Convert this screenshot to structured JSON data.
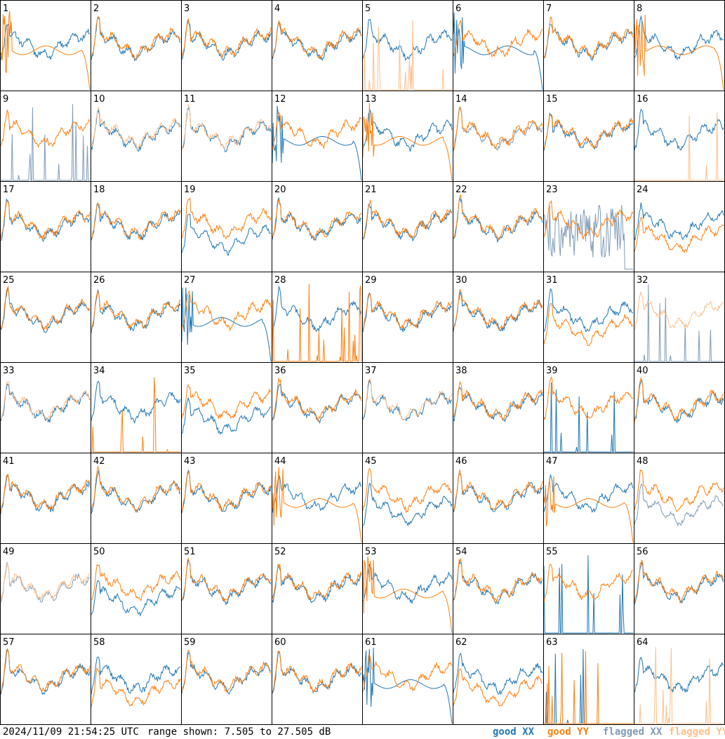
{
  "footer": {
    "timestamp": "2024/11/09 21:54:25 UTC",
    "range_text": "range shown: 7.505 to 27.505 dB"
  },
  "legend": [
    {
      "label": "good XX",
      "color": "#1f77b4"
    },
    {
      "label": "good YY",
      "color": "#ff7f0e"
    },
    {
      "label": "flagged XX",
      "color": "#7f9bb6"
    },
    {
      "label": "flagged YY",
      "color": "#ffbf8a"
    }
  ],
  "chart_data": {
    "type": "line",
    "layout": "small-multiples 8x8",
    "ylim": [
      7.505,
      27.505
    ],
    "yunit": "dB",
    "panels": [
      {
        "id": "1",
        "xx": "good",
        "yy": "good",
        "pattern": "yy-rolloff"
      },
      {
        "id": "2",
        "xx": "good",
        "yy": "good",
        "pattern": "normal"
      },
      {
        "id": "3",
        "xx": "good",
        "yy": "good",
        "pattern": "normal"
      },
      {
        "id": "4",
        "xx": "good",
        "yy": "good",
        "pattern": "normal"
      },
      {
        "id": "5",
        "xx": "good",
        "yy": "flagged",
        "pattern": "yy-dead"
      },
      {
        "id": "6",
        "xx": "good",
        "yy": "good",
        "pattern": "xx-rolloff"
      },
      {
        "id": "7",
        "xx": "good",
        "yy": "good",
        "pattern": "normal"
      },
      {
        "id": "8",
        "xx": "good",
        "yy": "good",
        "pattern": "yy-rolloff"
      },
      {
        "id": "9",
        "xx": "flagged",
        "yy": "good",
        "pattern": "xx-dead"
      },
      {
        "id": "10",
        "xx": "good",
        "yy": "flagged",
        "pattern": "normal"
      },
      {
        "id": "11",
        "xx": "good",
        "yy": "flagged",
        "pattern": "normal"
      },
      {
        "id": "12",
        "xx": "good",
        "yy": "good",
        "pattern": "xx-rolloff"
      },
      {
        "id": "13",
        "xx": "good",
        "yy": "good",
        "pattern": "yy-rolloff"
      },
      {
        "id": "14",
        "xx": "flagged",
        "yy": "good",
        "pattern": "normal"
      },
      {
        "id": "15",
        "xx": "good",
        "yy": "good",
        "pattern": "normal"
      },
      {
        "id": "16",
        "xx": "good",
        "yy": "flagged",
        "pattern": "yy-dead"
      },
      {
        "id": "17",
        "xx": "good",
        "yy": "good",
        "pattern": "normal"
      },
      {
        "id": "18",
        "xx": "good",
        "yy": "good",
        "pattern": "normal"
      },
      {
        "id": "19",
        "xx": "good",
        "yy": "good",
        "pattern": "xx-low"
      },
      {
        "id": "20",
        "xx": "good",
        "yy": "good",
        "pattern": "normal"
      },
      {
        "id": "21",
        "xx": "good",
        "yy": "good",
        "pattern": "normal"
      },
      {
        "id": "22",
        "xx": "good",
        "yy": "good",
        "pattern": "normal"
      },
      {
        "id": "23",
        "xx": "flagged",
        "yy": "good",
        "pattern": "xx-noisy"
      },
      {
        "id": "24",
        "xx": "good",
        "yy": "good",
        "pattern": "yy-low"
      },
      {
        "id": "25",
        "xx": "good",
        "yy": "good",
        "pattern": "normal"
      },
      {
        "id": "26",
        "xx": "good",
        "yy": "good",
        "pattern": "normal"
      },
      {
        "id": "27",
        "xx": "good",
        "yy": "good",
        "pattern": "xx-rolloff"
      },
      {
        "id": "28",
        "xx": "good",
        "yy": "good",
        "pattern": "yy-dead"
      },
      {
        "id": "29",
        "xx": "good",
        "yy": "good",
        "pattern": "normal"
      },
      {
        "id": "30",
        "xx": "good",
        "yy": "good",
        "pattern": "normal"
      },
      {
        "id": "31",
        "xx": "good",
        "yy": "good",
        "pattern": "yy-low"
      },
      {
        "id": "32",
        "xx": "flagged",
        "yy": "flagged",
        "pattern": "xx-dead"
      },
      {
        "id": "33",
        "xx": "good",
        "yy": "flagged",
        "pattern": "normal"
      },
      {
        "id": "34",
        "xx": "good",
        "yy": "good",
        "pattern": "yy-dead"
      },
      {
        "id": "35",
        "xx": "good",
        "yy": "good",
        "pattern": "xx-low"
      },
      {
        "id": "36",
        "xx": "good",
        "yy": "good",
        "pattern": "normal"
      },
      {
        "id": "37",
        "xx": "good",
        "yy": "flagged",
        "pattern": "normal"
      },
      {
        "id": "38",
        "xx": "good",
        "yy": "good",
        "pattern": "normal"
      },
      {
        "id": "39",
        "xx": "good",
        "yy": "good",
        "pattern": "xx-dead"
      },
      {
        "id": "40",
        "xx": "good",
        "yy": "good",
        "pattern": "normal"
      },
      {
        "id": "41",
        "xx": "good",
        "yy": "good",
        "pattern": "normal"
      },
      {
        "id": "42",
        "xx": "good",
        "yy": "good",
        "pattern": "normal"
      },
      {
        "id": "43",
        "xx": "good",
        "yy": "good",
        "pattern": "normal"
      },
      {
        "id": "44",
        "xx": "good",
        "yy": "good",
        "pattern": "yy-rolloff"
      },
      {
        "id": "45",
        "xx": "good",
        "yy": "good",
        "pattern": "xx-low"
      },
      {
        "id": "46",
        "xx": "good",
        "yy": "good",
        "pattern": "normal"
      },
      {
        "id": "47",
        "xx": "good",
        "yy": "good",
        "pattern": "yy-rolloff"
      },
      {
        "id": "48",
        "xx": "flagged",
        "yy": "good",
        "pattern": "xx-low"
      },
      {
        "id": "49",
        "xx": "flagged",
        "yy": "flagged",
        "pattern": "normal"
      },
      {
        "id": "50",
        "xx": "good",
        "yy": "good",
        "pattern": "xx-low"
      },
      {
        "id": "51",
        "xx": "good",
        "yy": "good",
        "pattern": "normal"
      },
      {
        "id": "52",
        "xx": "good",
        "yy": "good",
        "pattern": "normal"
      },
      {
        "id": "53",
        "xx": "good",
        "yy": "good",
        "pattern": "yy-rolloff"
      },
      {
        "id": "54",
        "xx": "good",
        "yy": "good",
        "pattern": "normal"
      },
      {
        "id": "55",
        "xx": "good",
        "yy": "good",
        "pattern": "xx-dead"
      },
      {
        "id": "56",
        "xx": "good",
        "yy": "good",
        "pattern": "normal"
      },
      {
        "id": "57",
        "xx": "good",
        "yy": "good",
        "pattern": "normal"
      },
      {
        "id": "58",
        "xx": "good",
        "yy": "good",
        "pattern": "yy-low"
      },
      {
        "id": "59",
        "xx": "good",
        "yy": "good",
        "pattern": "normal"
      },
      {
        "id": "60",
        "xx": "good",
        "yy": "good",
        "pattern": "normal"
      },
      {
        "id": "61",
        "xx": "good",
        "yy": "good",
        "pattern": "xx-rolloff"
      },
      {
        "id": "62",
        "xx": "good",
        "yy": "good",
        "pattern": "yy-low"
      },
      {
        "id": "63",
        "xx": "good",
        "yy": "good",
        "pattern": "both-dead"
      },
      {
        "id": "64",
        "xx": "good",
        "yy": "flagged",
        "pattern": "yy-dead"
      }
    ]
  }
}
